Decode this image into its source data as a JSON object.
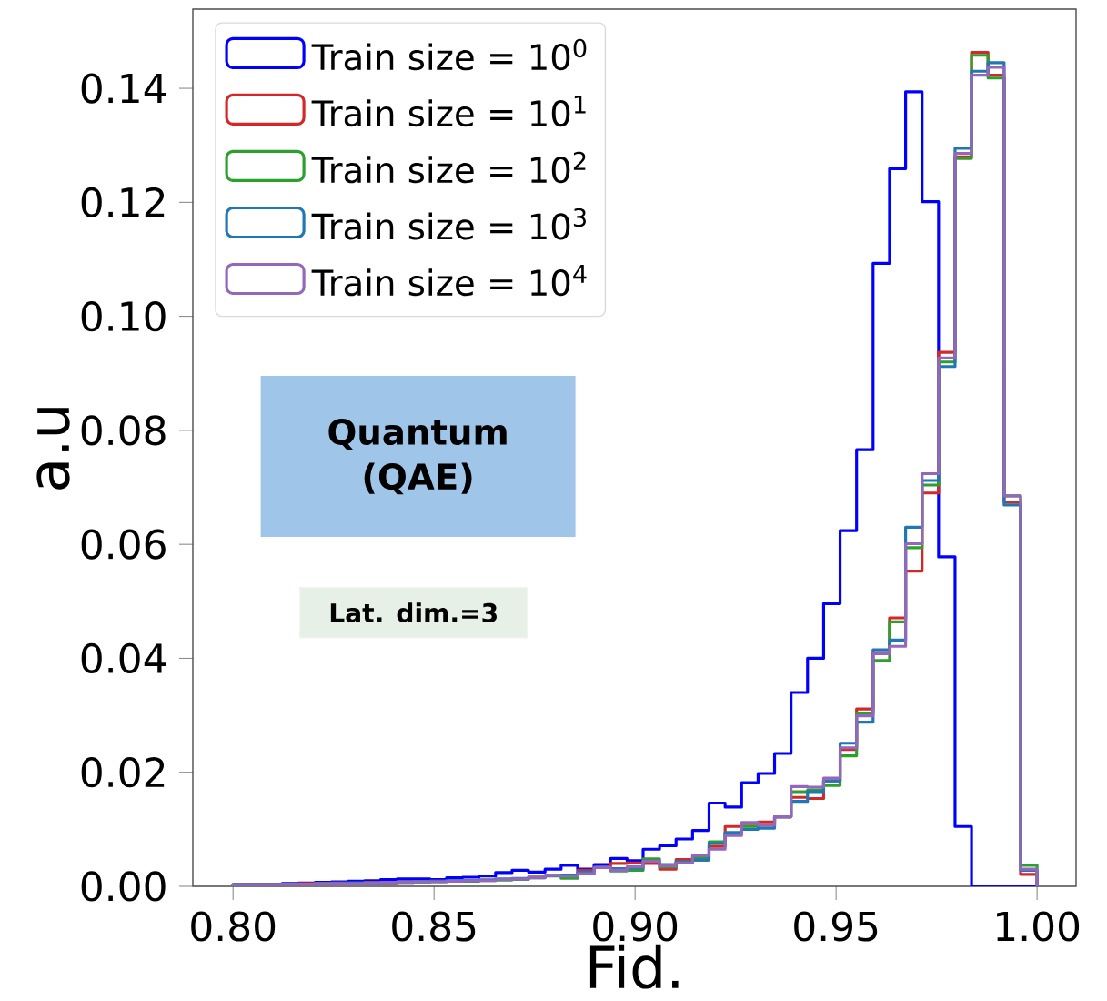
{
  "chart_data": {
    "type": "histogram",
    "xlabel": "Fid.",
    "ylabel": "a.u",
    "bins": [
      0.8,
      0.8041,
      0.8082,
      0.8122,
      0.8163,
      0.8204,
      0.8245,
      0.8286,
      0.8327,
      0.8367,
      0.8408,
      0.8449,
      0.849,
      0.8531,
      0.8571,
      0.8612,
      0.8653,
      0.8694,
      0.8735,
      0.8776,
      0.8816,
      0.8857,
      0.8898,
      0.8939,
      0.898,
      0.902,
      0.9061,
      0.9102,
      0.9143,
      0.9184,
      0.9224,
      0.9265,
      0.9306,
      0.9347,
      0.9388,
      0.9429,
      0.9469,
      0.951,
      0.9551,
      0.9592,
      0.9633,
      0.9673,
      0.9714,
      0.9755,
      0.9796,
      0.9837,
      0.9878,
      0.9918,
      0.9959,
      1.0
    ],
    "series": [
      {
        "name": "Train size = 10$^{0}$",
        "color": "#0000ff",
        "values": [
          0.0003,
          0.0004,
          0.0004,
          0.0005,
          0.0006,
          0.0007,
          0.0008,
          0.0009,
          0.001,
          0.0012,
          0.0013,
          0.0013,
          0.0012,
          0.0015,
          0.0016,
          0.0018,
          0.0024,
          0.0028,
          0.0025,
          0.003,
          0.0037,
          0.003,
          0.0038,
          0.0049,
          0.0045,
          0.0065,
          0.0071,
          0.0083,
          0.0098,
          0.0146,
          0.0139,
          0.0182,
          0.0198,
          0.0233,
          0.034,
          0.04,
          0.0496,
          0.0624,
          0.0766,
          0.1093,
          0.1259,
          0.1394,
          0.1201,
          0.0578,
          0.0105,
          0,
          0,
          0,
          0
        ]
      },
      {
        "name": "Train size = 10$^{1}$",
        "color": "#d62728",
        "values": [
          0.0003,
          0.0004,
          0.0003,
          0.0004,
          0.0005,
          0.0005,
          0.0006,
          0.0005,
          0.0007,
          0.0006,
          0.0008,
          0.0008,
          0.0009,
          0.0009,
          0.001,
          0.0011,
          0.0012,
          0.0013,
          0.0016,
          0.0019,
          0.002,
          0.0028,
          0.0033,
          0.004,
          0.0041,
          0.004,
          0.003,
          0.0047,
          0.0046,
          0.007,
          0.0105,
          0.011,
          0.0113,
          0.0122,
          0.0156,
          0.0154,
          0.0185,
          0.024,
          0.0311,
          0.041,
          0.0471,
          0.0553,
          0.069,
          0.0937,
          0.128,
          0.1463,
          0.1423,
          0.0674,
          0.0021
        ]
      },
      {
        "name": "Train size = 10$^{2}$",
        "color": "#2ca02c",
        "values": [
          0.0003,
          0.0003,
          0.0004,
          0.0004,
          0.0004,
          0.0005,
          0.0005,
          0.0006,
          0.0006,
          0.0007,
          0.0007,
          0.0008,
          0.0008,
          0.0009,
          0.0009,
          0.001,
          0.0011,
          0.0012,
          0.0015,
          0.0018,
          0.0014,
          0.0022,
          0.0033,
          0.0027,
          0.0028,
          0.0048,
          0.0034,
          0.0043,
          0.005,
          0.0078,
          0.0094,
          0.0105,
          0.0107,
          0.0122,
          0.0166,
          0.0169,
          0.0177,
          0.0229,
          0.0304,
          0.0396,
          0.0464,
          0.0594,
          0.0704,
          0.092,
          0.1277,
          0.1458,
          0.1418,
          0.0685,
          0.0037
        ]
      },
      {
        "name": "Train size = 10$^{3}$",
        "color": "#1f77b4",
        "values": [
          0.0003,
          0.0003,
          0.0003,
          0.0004,
          0.0004,
          0.0005,
          0.0006,
          0.0006,
          0.0006,
          0.0007,
          0.0008,
          0.0008,
          0.0009,
          0.001,
          0.001,
          0.0011,
          0.0013,
          0.0014,
          0.0016,
          0.0019,
          0.002,
          0.0025,
          0.0033,
          0.0031,
          0.0032,
          0.0044,
          0.0038,
          0.0043,
          0.0046,
          0.0075,
          0.0094,
          0.01,
          0.0102,
          0.0122,
          0.0149,
          0.0166,
          0.0185,
          0.0251,
          0.0288,
          0.0415,
          0.0432,
          0.063,
          0.0712,
          0.0912,
          0.1295,
          0.143,
          0.1445,
          0.0669,
          0.0028
        ]
      },
      {
        "name": "Train size = 10$^{4}$",
        "color": "#9467bd",
        "values": [
          0.0003,
          0.0003,
          0.0003,
          0.0004,
          0.0004,
          0.0005,
          0.0005,
          0.0005,
          0.0006,
          0.0007,
          0.0007,
          0.0008,
          0.0008,
          0.0009,
          0.001,
          0.001,
          0.0012,
          0.0013,
          0.0015,
          0.0019,
          0.0018,
          0.0022,
          0.0033,
          0.0028,
          0.0034,
          0.0044,
          0.0036,
          0.0041,
          0.0054,
          0.0065,
          0.0089,
          0.0112,
          0.0107,
          0.0122,
          0.0175,
          0.0174,
          0.019,
          0.0243,
          0.0299,
          0.0408,
          0.0421,
          0.0601,
          0.0724,
          0.0927,
          0.1286,
          0.1423,
          0.1437,
          0.0685,
          0.003
        ]
      }
    ],
    "xlim": [
      0.79,
      1.0097
    ],
    "ylim": [
      0,
      0.1539
    ],
    "xticks": [
      {
        "value": 0.8,
        "label": "0.80"
      },
      {
        "value": 0.85,
        "label": "0.85"
      },
      {
        "value": 0.9,
        "label": "0.90"
      },
      {
        "value": 0.95,
        "label": "0.95"
      },
      {
        "value": 1.0,
        "label": "1.00"
      }
    ],
    "yticks": [
      {
        "value": 0,
        "label": "0.00"
      },
      {
        "value": 0.02,
        "label": "0.02"
      },
      {
        "value": 0.04,
        "label": "0.04"
      },
      {
        "value": 0.06,
        "label": "0.06"
      },
      {
        "value": 0.08,
        "label": "0.08"
      },
      {
        "value": 0.1,
        "label": "0.10"
      },
      {
        "value": 0.12,
        "label": "0.12"
      },
      {
        "value": 0.14,
        "label": "0.14"
      }
    ],
    "legend": "top left",
    "annotations": [
      "Quantum (QAE)",
      "Lat. dim.=3"
    ]
  }
}
